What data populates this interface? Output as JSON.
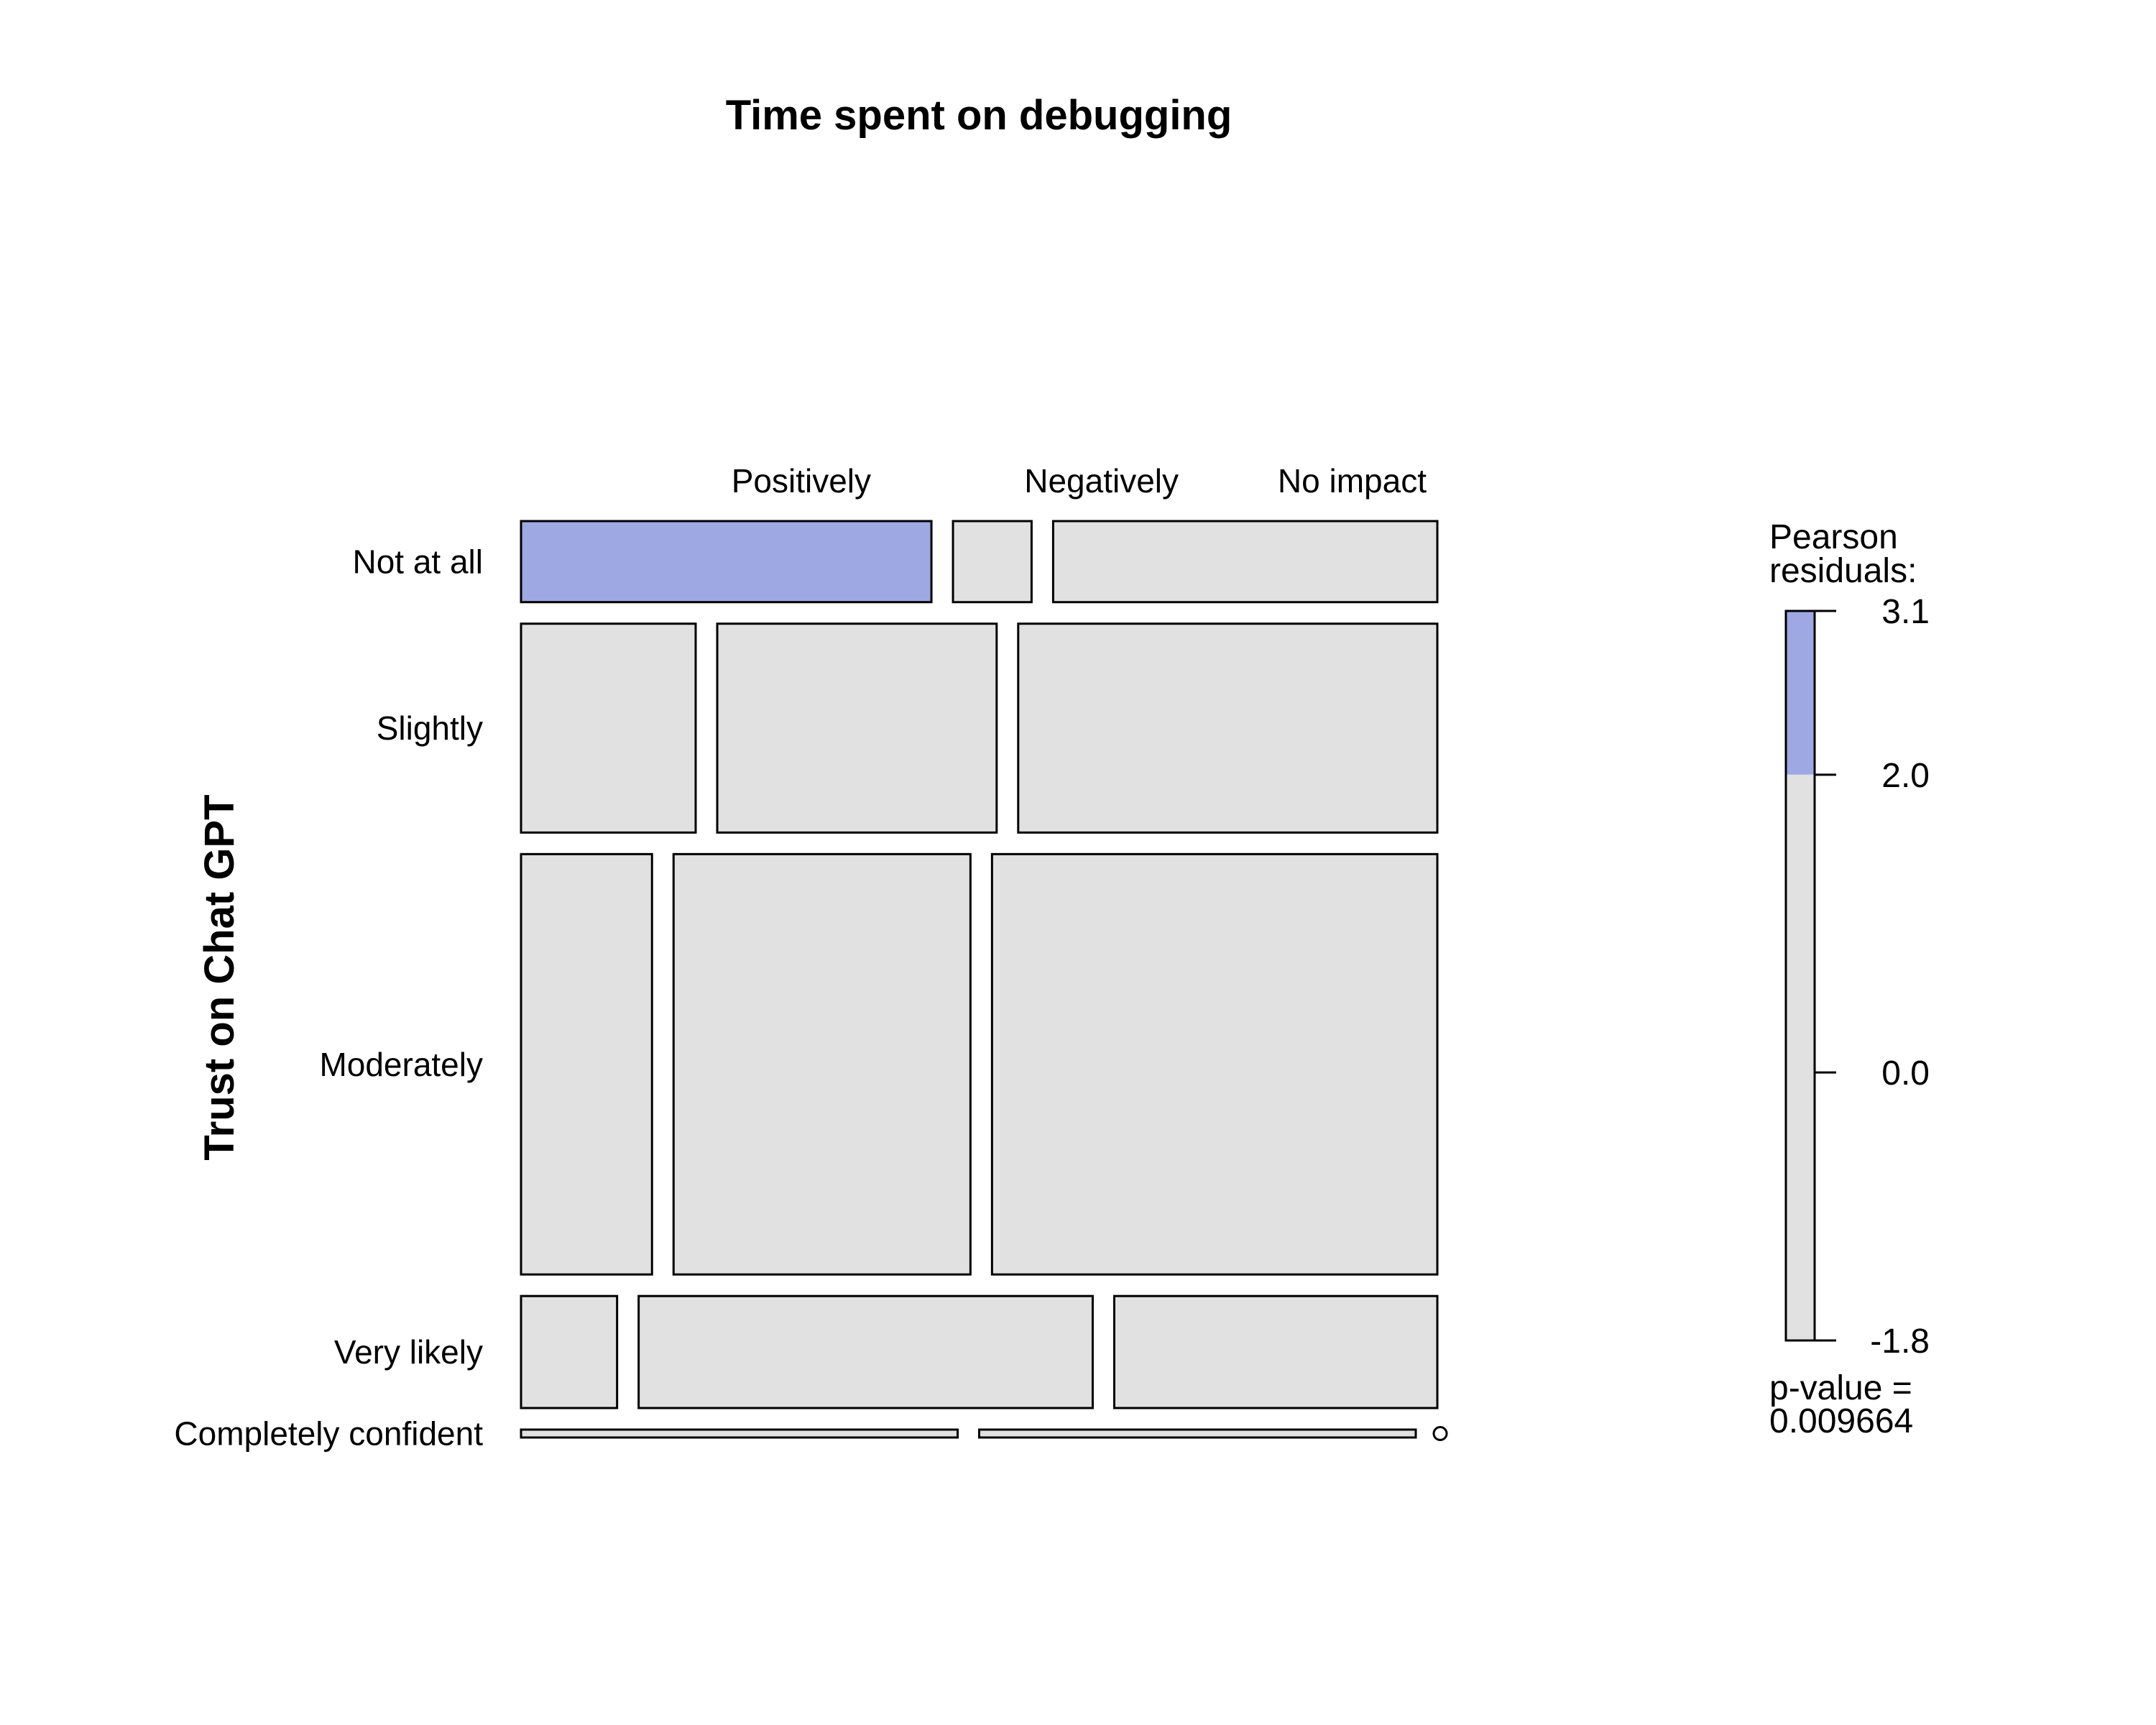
{
  "chart_data": {
    "type": "mosaic",
    "title": "Time spent on debugging",
    "ylabel": "Trust on Chat GPT",
    "columns": [
      "Positively",
      "Negatively",
      "No impact"
    ],
    "rows": [
      "Not at all",
      "Slightly",
      "Moderately",
      "Very likely",
      "Completely confident"
    ],
    "row_proportions": [
      0.123,
      0.317,
      0.638,
      0.17,
      0.012
    ],
    "cell_proportions": [
      [
        0.47,
        0.09,
        0.44
      ],
      [
        0.2,
        0.32,
        0.48
      ],
      [
        0.15,
        0.34,
        0.51
      ],
      [
        0.11,
        0.52,
        0.37
      ],
      [
        0.5,
        0.5,
        0.0
      ]
    ],
    "highlighted_cells": [
      [
        0,
        0
      ]
    ],
    "colors": {
      "positive_residual": "#9ea8e2",
      "neutral": "#e1e1e1",
      "border": "#000000"
    },
    "legend": {
      "title": [
        "Pearson",
        "residuals:"
      ],
      "ticks": [
        "3.1",
        "2.0",
        "0.0",
        "-1.8"
      ],
      "tick_values": [
        3.1,
        2.0,
        0.0,
        -1.8
      ],
      "range": [
        -1.8,
        3.1
      ],
      "shade_threshold": 2.0,
      "pvalue_label": [
        "p-value =",
        "0.009664"
      ]
    }
  }
}
